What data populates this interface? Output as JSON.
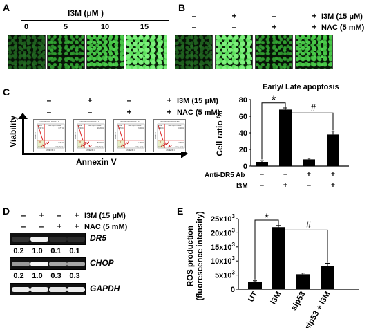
{
  "panel_A": {
    "label": "A",
    "header": "I3M (μM )",
    "concentrations": [
      "0",
      "5",
      "10",
      "15"
    ]
  },
  "panel_B": {
    "label": "B",
    "i3m_row": [
      "–",
      "+",
      "–",
      "+"
    ],
    "nac_row": [
      "–",
      "–",
      "+",
      "+"
    ],
    "i3m_label": "I3M (15 μM)",
    "nac_label": "NAC (5 mM)"
  },
  "panel_C": {
    "label": "C",
    "i3m_row": [
      "–",
      "+",
      "–",
      "+"
    ],
    "nac_row": [
      "–",
      "–",
      "+",
      "+"
    ],
    "i3m_label": "I3M (15 μM)",
    "nac_label": "NAC (5 mM)",
    "flow_ylabel": "Viability",
    "flow_xlabel": "Annexin V",
    "flow_plots": [
      {
        "title": "APOPTOSIS PROFILE",
        "tl": "1.30 %",
        "tr": "3.70 %",
        "bl": "",
        "br": "1.30 %"
      },
      {
        "title": "APOPTOSIS PROFILE",
        "tl": "1.30 %",
        "tr": "20.20 %",
        "bl": "",
        "br": "50.60 %"
      },
      {
        "title": "APOPTOSIS PROFILE",
        "tl": "1.70 %",
        "tr": "6.00 %",
        "bl": "",
        "br": "1.30 %"
      },
      {
        "title": "APOPTOSIS PROFILE",
        "tl": "0.30 %",
        "tr": "10.60 %",
        "bl": "",
        "br": "34.80 %"
      }
    ],
    "flow_quadrants": {
      "dead": "Dead",
      "late": "Late Apop./Dead",
      "live": "Live",
      "early": "Early Apop."
    },
    "flow_axis_inner_y": "VIABILITY",
    "flow_axis_inner_x": "ANNEXIN V",
    "chart_title": "Early/ Late apoptosis",
    "anti_dr5_label": "Anti-DR5 Ab",
    "i3m_axis_label": "I3M",
    "anti_dr5_row": [
      "–",
      "–",
      "+",
      "+"
    ],
    "i3m_axis_row": [
      "–",
      "+",
      "–",
      "+"
    ],
    "sig_star": "*",
    "sig_hash": "#"
  },
  "panel_D": {
    "label": "D",
    "i3m_row": [
      "–",
      "+",
      "–",
      "+"
    ],
    "nac_row": [
      "–",
      "–",
      "+",
      "+"
    ],
    "i3m_label": "I3M (15 μM)",
    "nac_label": "NAC (5 mM)",
    "genes": [
      {
        "name": "DR5",
        "values": [
          "0.2",
          "1.0",
          "0.1",
          "0.1"
        ]
      },
      {
        "name": "CHOP",
        "values": [
          "0.2",
          "1.0",
          "0.3",
          "0.3"
        ]
      },
      {
        "name": "GAPDH",
        "values": []
      }
    ]
  },
  "panel_E": {
    "label": "E",
    "sig_star": "*",
    "sig_hash": "#"
  },
  "chart_data": [
    {
      "type": "bar",
      "panel": "C",
      "title": "Early/ Late apoptosis",
      "ylabel": "Cell ratio %",
      "ylim": [
        0,
        80
      ],
      "yticks": [
        "0",
        "20",
        "40",
        "60",
        "80"
      ],
      "categories": [
        "–/–",
        "–/+",
        "+/–",
        "+/+"
      ],
      "values": [
        5,
        68,
        8,
        38
      ],
      "errors": [
        1.5,
        2,
        1.5,
        4
      ]
    },
    {
      "type": "bar",
      "panel": "E",
      "ylabel": "ROS production (fluorescence intensity)",
      "ylabel_lines": [
        "ROS production",
        "(fluorescence intensity)"
      ],
      "ylim": [
        0,
        25000
      ],
      "yticks": [
        {
          "mant": "0",
          "exp": ""
        },
        {
          "mant": "5x10",
          "exp": "3"
        },
        {
          "mant": "10x10",
          "exp": "3"
        },
        {
          "mant": "15x10",
          "exp": "3"
        },
        {
          "mant": "20x10",
          "exp": "3"
        },
        {
          "mant": "25x10",
          "exp": "3"
        }
      ],
      "categories": [
        "UT",
        "I3M",
        "sip53",
        "sip53 + I3M"
      ],
      "values": [
        2500,
        22000,
        5300,
        8300
      ],
      "errors": [
        500,
        600,
        400,
        900
      ]
    }
  ]
}
